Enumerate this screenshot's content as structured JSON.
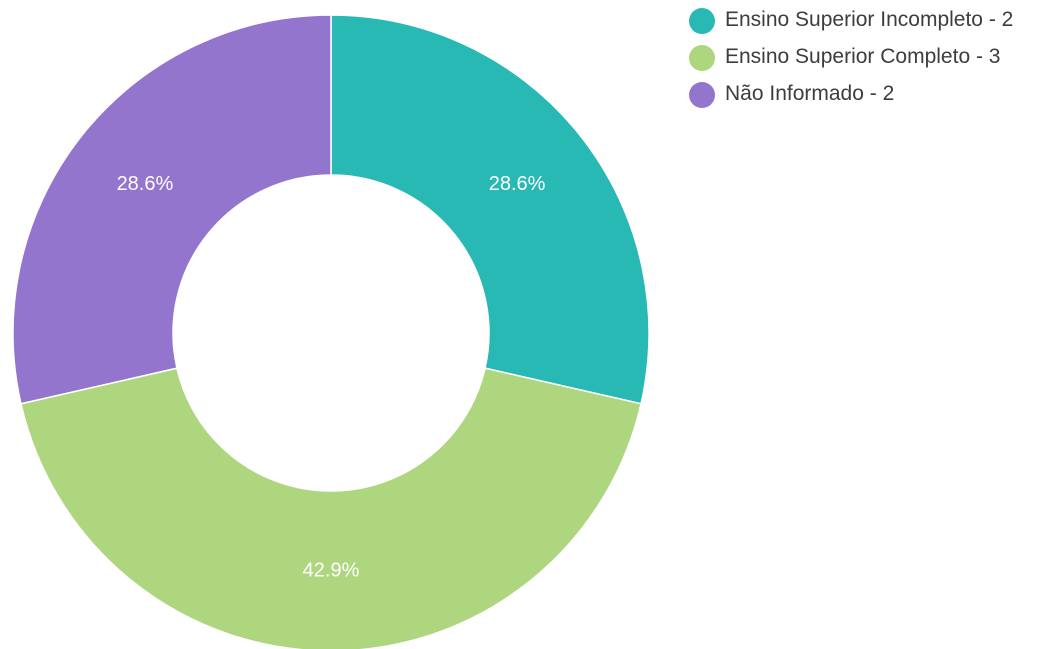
{
  "chart_data": {
    "type": "pie",
    "variant": "donut",
    "slices": [
      {
        "label": "Ensino Superior Incompleto",
        "value": 2,
        "percent_label": "28.6%",
        "color": "#29b9b5"
      },
      {
        "label": "Ensino Superior Completo",
        "value": 3,
        "percent_label": "42.9%",
        "color": "#aed67e"
      },
      {
        "label": "Não Informado",
        "value": 2,
        "percent_label": "28.6%",
        "color": "#9475cd"
      }
    ],
    "legend": {
      "position": "right",
      "entries": [
        "Ensino Superior Incompleto - 2",
        "Ensino Superior Completo - 3",
        "Não Informado - 2"
      ]
    },
    "start_angle": "top",
    "direction": "clockwise"
  }
}
